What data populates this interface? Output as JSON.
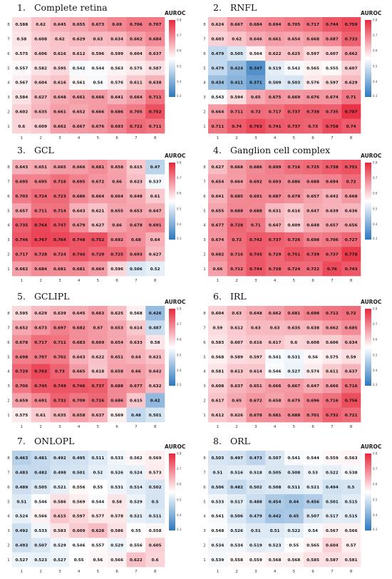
{
  "colors": {
    "low": "#2d78be",
    "mid": "#ffffff",
    "high": "#e8283c"
  },
  "colorbar": {
    "label": "AUROC",
    "ticks": [
      "0.8",
      "0.7",
      "0.6",
      "0.5",
      "0.4",
      "0.3"
    ],
    "min": 0.3,
    "max": 0.8
  },
  "chart_data": [
    {
      "type": "heatmap",
      "number": "1.",
      "title": "Complete retina",
      "x": [
        "1",
        "2",
        "3",
        "4",
        "5",
        "6",
        "7",
        "8"
      ],
      "y": [
        "8",
        "7",
        "6",
        "5",
        "4",
        "3",
        "2",
        "1"
      ],
      "values": [
        [
          0.588,
          0.62,
          0.645,
          0.655,
          0.673,
          0.69,
          0.706,
          0.707
        ],
        [
          0.58,
          0.608,
          0.62,
          0.629,
          0.63,
          0.634,
          0.662,
          0.684
        ],
        [
          0.575,
          0.606,
          0.616,
          0.612,
          0.596,
          0.599,
          0.604,
          0.637
        ],
        [
          0.557,
          0.582,
          0.595,
          0.542,
          0.544,
          0.563,
          0.575,
          0.587
        ],
        [
          0.567,
          0.604,
          0.616,
          0.561,
          0.54,
          0.576,
          0.611,
          0.638
        ],
        [
          0.584,
          0.627,
          0.648,
          0.661,
          0.666,
          0.641,
          0.664,
          0.711
        ],
        [
          0.602,
          0.635,
          0.661,
          0.652,
          0.666,
          0.686,
          0.705,
          0.752
        ],
        [
          0.6,
          0.609,
          0.662,
          0.667,
          0.676,
          0.693,
          0.722,
          0.711
        ]
      ]
    },
    {
      "type": "heatmap",
      "number": "2.",
      "title": "RNFL",
      "x": [
        "1",
        "2",
        "3",
        "4",
        "5",
        "6",
        "7",
        "8"
      ],
      "y": [
        "8",
        "7",
        "6",
        "5",
        "4",
        "3",
        "2",
        "1"
      ],
      "values": [
        [
          0.624,
          0.667,
          0.684,
          0.694,
          0.705,
          0.717,
          0.744,
          0.759
        ],
        [
          0.603,
          0.62,
          0.646,
          0.661,
          0.654,
          0.668,
          0.687,
          0.733
        ],
        [
          0.479,
          0.505,
          0.564,
          0.622,
          0.625,
          0.597,
          0.607,
          0.662
        ],
        [
          0.479,
          0.424,
          0.347,
          0.519,
          0.542,
          0.565,
          0.555,
          0.607
        ],
        [
          0.434,
          0.411,
          0.371,
          0.509,
          0.503,
          0.576,
          0.597,
          0.629
        ],
        [
          0.543,
          0.594,
          0.65,
          0.675,
          0.669,
          0.676,
          0.674,
          0.71
        ],
        [
          0.664,
          0.711,
          0.72,
          0.717,
          0.737,
          0.738,
          0.735,
          0.787
        ],
        [
          0.711,
          0.74,
          0.763,
          0.741,
          0.737,
          0.73,
          0.758,
          0.74
        ]
      ]
    },
    {
      "type": "heatmap",
      "number": "3.",
      "title": "GCL",
      "x": [
        "1",
        "2",
        "3",
        "4",
        "5",
        "6",
        "7",
        "8"
      ],
      "y": [
        "8",
        "7",
        "6",
        "5",
        "4",
        "3",
        "2",
        "1"
      ],
      "values": [
        [
          0.643,
          0.651,
          0.665,
          0.666,
          0.681,
          0.658,
          0.615,
          0.47
        ],
        [
          0.695,
          0.695,
          0.716,
          0.695,
          0.672,
          0.66,
          0.623,
          0.537
        ],
        [
          0.703,
          0.724,
          0.723,
          0.686,
          0.664,
          0.664,
          0.648,
          0.61
        ],
        [
          0.657,
          0.711,
          0.714,
          0.643,
          0.621,
          0.655,
          0.653,
          0.647
        ],
        [
          0.735,
          0.764,
          0.747,
          0.679,
          0.627,
          0.66,
          0.678,
          0.691
        ],
        [
          0.746,
          0.767,
          0.764,
          0.748,
          0.752,
          0.692,
          0.68,
          0.64
        ],
        [
          0.717,
          0.728,
          0.724,
          0.746,
          0.729,
          0.725,
          0.693,
          0.627
        ],
        [
          0.662,
          0.684,
          0.681,
          0.681,
          0.664,
          0.596,
          0.506,
          0.52
        ]
      ]
    },
    {
      "type": "heatmap",
      "number": "4.",
      "title": "Ganglion cell complex",
      "x": [
        "1",
        "2",
        "3",
        "4",
        "5",
        "6",
        "7",
        "8"
      ],
      "y": [
        "8",
        "7",
        "6",
        "5",
        "4",
        "3",
        "2",
        "1"
      ],
      "values": [
        [
          0.627,
          0.668,
          0.686,
          0.699,
          0.716,
          0.725,
          0.738,
          0.751
        ],
        [
          0.654,
          0.664,
          0.692,
          0.693,
          0.686,
          0.688,
          0.694,
          0.72
        ],
        [
          0.641,
          0.685,
          0.691,
          0.687,
          0.678,
          0.657,
          0.642,
          0.668
        ],
        [
          0.655,
          0.688,
          0.688,
          0.631,
          0.616,
          0.647,
          0.639,
          0.636
        ],
        [
          0.677,
          0.728,
          0.71,
          0.647,
          0.609,
          0.648,
          0.657,
          0.656
        ],
        [
          0.674,
          0.72,
          0.742,
          0.737,
          0.726,
          0.698,
          0.706,
          0.727
        ],
        [
          0.682,
          0.716,
          0.745,
          0.729,
          0.751,
          0.739,
          0.737,
          0.778
        ],
        [
          0.66,
          0.712,
          0.744,
          0.728,
          0.724,
          0.722,
          0.76,
          0.743
        ]
      ]
    },
    {
      "type": "heatmap",
      "number": "5.",
      "title": "GCLIPL",
      "x": [
        "1",
        "2",
        "3",
        "4",
        "5",
        "6",
        "7",
        "8"
      ],
      "y": [
        "8",
        "7",
        "6",
        "5",
        "4",
        "3",
        "2",
        "1"
      ],
      "values": [
        [
          0.595,
          0.629,
          0.639,
          0.645,
          0.663,
          0.625,
          0.568,
          0.426
        ],
        [
          0.652,
          0.673,
          0.697,
          0.682,
          0.67,
          0.653,
          0.614,
          0.487
        ],
        [
          0.678,
          0.717,
          0.711,
          0.683,
          0.669,
          0.654,
          0.633,
          0.58
        ],
        [
          0.698,
          0.707,
          0.702,
          0.643,
          0.622,
          0.651,
          0.64,
          0.621
        ],
        [
          0.729,
          0.763,
          0.73,
          0.665,
          0.618,
          0.658,
          0.66,
          0.642
        ],
        [
          0.706,
          0.745,
          0.749,
          0.746,
          0.737,
          0.688,
          0.677,
          0.632
        ],
        [
          0.659,
          0.691,
          0.732,
          0.709,
          0.726,
          0.686,
          0.615,
          0.42
        ],
        [
          0.575,
          0.61,
          0.635,
          0.658,
          0.637,
          0.569,
          0.48,
          0.501
        ]
      ]
    },
    {
      "type": "heatmap",
      "number": "6.",
      "title": "IRL",
      "x": [
        "1",
        "2",
        "3",
        "4",
        "5",
        "6",
        "7",
        "8"
      ],
      "y": [
        "8",
        "7",
        "6",
        "5",
        "4",
        "3",
        "2",
        "1"
      ],
      "values": [
        [
          0.604,
          0.63,
          0.648,
          0.662,
          0.681,
          0.698,
          0.712,
          0.72
        ],
        [
          0.59,
          0.612,
          0.63,
          0.63,
          0.635,
          0.638,
          0.662,
          0.685
        ],
        [
          0.583,
          0.607,
          0.616,
          0.617,
          0.6,
          0.608,
          0.606,
          0.634
        ],
        [
          0.568,
          0.589,
          0.597,
          0.541,
          0.531,
          0.56,
          0.575,
          0.59
        ],
        [
          0.581,
          0.613,
          0.614,
          0.546,
          0.527,
          0.574,
          0.611,
          0.637
        ],
        [
          0.608,
          0.637,
          0.651,
          0.666,
          0.667,
          0.647,
          0.666,
          0.716
        ],
        [
          0.617,
          0.65,
          0.672,
          0.658,
          0.675,
          0.696,
          0.716,
          0.756
        ],
        [
          0.612,
          0.626,
          0.678,
          0.681,
          0.688,
          0.701,
          0.732,
          0.721
        ]
      ]
    },
    {
      "type": "heatmap",
      "number": "7.",
      "title": "ONLOPL",
      "x": [
        "1",
        "2",
        "3",
        "4",
        "5",
        "6",
        "7",
        "8"
      ],
      "y": [
        "8",
        "7",
        "6",
        "5",
        "4",
        "3",
        "2",
        "1"
      ],
      "values": [
        [
          0.463,
          0.481,
          0.492,
          0.495,
          0.511,
          0.533,
          0.562,
          0.569
        ],
        [
          0.483,
          0.482,
          0.498,
          0.501,
          0.52,
          0.526,
          0.524,
          0.573
        ],
        [
          0.489,
          0.505,
          0.521,
          0.556,
          0.55,
          0.531,
          0.514,
          0.502
        ],
        [
          0.51,
          0.546,
          0.586,
          0.569,
          0.544,
          0.58,
          0.529,
          0.5
        ],
        [
          0.524,
          0.566,
          0.615,
          0.597,
          0.577,
          0.578,
          0.521,
          0.511
        ],
        [
          0.492,
          0.533,
          0.583,
          0.609,
          0.628,
          0.586,
          0.55,
          0.558
        ],
        [
          0.493,
          0.507,
          0.529,
          0.546,
          0.557,
          0.529,
          0.556,
          0.605
        ],
        [
          0.527,
          0.523,
          0.527,
          0.55,
          0.56,
          0.566,
          0.622,
          0.6
        ]
      ]
    },
    {
      "type": "heatmap",
      "number": "8.",
      "title": "ORL",
      "x": [
        "1",
        "2",
        "3",
        "4",
        "5",
        "6",
        "7",
        "8"
      ],
      "y": [
        "8",
        "7",
        "6",
        "5",
        "4",
        "3",
        "2",
        "1"
      ],
      "values": [
        [
          0.503,
          0.497,
          0.473,
          0.507,
          0.541,
          0.544,
          0.559,
          0.563
        ],
        [
          0.51,
          0.516,
          0.518,
          0.505,
          0.508,
          0.53,
          0.522,
          0.538
        ],
        [
          0.506,
          0.482,
          0.502,
          0.508,
          0.511,
          0.521,
          0.494,
          0.5
        ],
        [
          0.533,
          0.517,
          0.488,
          0.454,
          0.44,
          0.456,
          0.501,
          0.515
        ],
        [
          0.541,
          0.506,
          0.479,
          0.442,
          0.45,
          0.507,
          0.517,
          0.515
        ],
        [
          0.548,
          0.526,
          0.51,
          0.51,
          0.522,
          0.54,
          0.567,
          0.566
        ],
        [
          0.534,
          0.534,
          0.519,
          0.523,
          0.55,
          0.565,
          0.604,
          0.57
        ],
        [
          0.539,
          0.558,
          0.559,
          0.568,
          0.568,
          0.585,
          0.587,
          0.581
        ]
      ]
    }
  ]
}
